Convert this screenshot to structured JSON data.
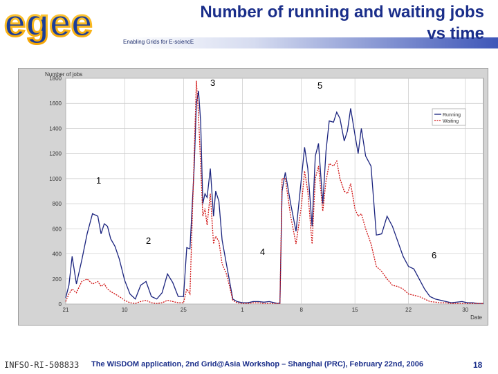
{
  "slide": {
    "logo_text": "egee",
    "tagline": "Enabling Grids for E-sciencE",
    "title_line1": "Number of running and waiting jobs",
    "title_line2": "vs time",
    "footer_id": "INFSO-RI-508833",
    "footer_text": "The WISDOM application, 2nd Grid@Asia Workshop – Shanghai (PRC), February 22nd, 2006",
    "page_number": "18"
  },
  "colors": {
    "brand_blue": "#1a2e8a",
    "running": "#1a237e",
    "waiting": "#d01010"
  },
  "chart_data": {
    "type": "line",
    "title": "",
    "ylabel": "Number of jobs",
    "xlabel": "Date",
    "ylim": [
      0,
      1800
    ],
    "yticks": [
      "0",
      "200",
      "400",
      "600",
      "800",
      "1000",
      "1200",
      "1400",
      "1600",
      "1800"
    ],
    "xlim": [
      0,
      39
    ],
    "xtick_positions": [
      0,
      5.5,
      11,
      16.5,
      22,
      27,
      32,
      37.3
    ],
    "xticks": [
      "21",
      "10",
      "25",
      "1",
      "8",
      "15",
      "22",
      "30"
    ],
    "legend": {
      "placement": "right",
      "entries": [
        "Running",
        "Waiting"
      ]
    },
    "grid": true,
    "series": [
      {
        "name": "Running",
        "x": [
          0,
          0.3,
          0.6,
          1,
          1.5,
          2,
          2.5,
          3,
          3.3,
          3.6,
          3.9,
          4.2,
          4.6,
          5,
          5.5,
          6,
          6.5,
          7,
          7.5,
          8,
          8.5,
          9,
          9.5,
          10,
          10.5,
          11,
          11.3,
          11.6,
          12,
          12.2,
          12.4,
          12.6,
          12.8,
          13,
          13.2,
          13.5,
          13.8,
          14,
          14.3,
          14.6,
          15,
          15.3,
          15.6,
          16,
          16.5,
          17,
          17.5,
          18,
          18.5,
          19,
          19.5,
          19.8,
          20,
          20.2,
          20.5,
          21,
          21.5,
          22,
          22.3,
          22.6,
          23,
          23.3,
          23.6,
          24,
          24.3,
          24.6,
          25,
          25.3,
          25.6,
          26,
          26.3,
          26.6,
          27,
          27.3,
          27.6,
          28,
          28.5,
          29,
          29.5,
          30,
          30.5,
          31,
          31.5,
          32,
          32.5,
          33,
          33.5,
          34,
          34.5,
          35,
          35.5,
          36,
          36.5,
          37,
          37.5,
          38,
          38.5,
          39
        ],
        "values": [
          50,
          150,
          380,
          160,
          350,
          560,
          720,
          700,
          560,
          640,
          620,
          520,
          460,
          360,
          190,
          80,
          40,
          150,
          180,
          60,
          40,
          90,
          240,
          170,
          60,
          60,
          450,
          440,
          1100,
          1600,
          1700,
          1450,
          800,
          880,
          850,
          1080,
          700,
          900,
          820,
          510,
          320,
          180,
          40,
          20,
          10,
          10,
          20,
          20,
          15,
          20,
          10,
          5,
          10,
          900,
          1050,
          800,
          580,
          1000,
          1250,
          1080,
          620,
          1180,
          1280,
          800,
          1220,
          1460,
          1450,
          1530,
          1480,
          1300,
          1380,
          1560,
          1350,
          1200,
          1400,
          1180,
          1100,
          550,
          560,
          700,
          620,
          500,
          380,
          300,
          280,
          200,
          120,
          60,
          40,
          30,
          20,
          10,
          15,
          20,
          10,
          10,
          5,
          5
        ],
        "color": "#1a237e",
        "dash": false
      },
      {
        "name": "Waiting",
        "x": [
          0,
          0.3,
          0.6,
          1,
          1.5,
          2,
          2.5,
          3,
          3.3,
          3.6,
          3.9,
          4.2,
          4.6,
          5,
          5.5,
          6,
          6.5,
          7,
          7.5,
          8,
          8.5,
          9,
          9.5,
          10,
          10.5,
          11,
          11.3,
          11.6,
          12,
          12.2,
          12.4,
          12.6,
          12.8,
          13,
          13.2,
          13.5,
          13.8,
          14,
          14.3,
          14.6,
          15,
          15.3,
          15.6,
          16,
          16.5,
          17,
          17.5,
          18,
          18.5,
          19,
          19.5,
          19.8,
          20,
          20.2,
          20.5,
          21,
          21.5,
          22,
          22.3,
          22.6,
          23,
          23.3,
          23.6,
          24,
          24.3,
          24.6,
          25,
          25.3,
          25.6,
          26,
          26.3,
          26.6,
          27,
          27.3,
          27.6,
          28,
          28.5,
          29,
          29.5,
          30,
          30.5,
          31,
          31.5,
          32,
          32.5,
          33,
          33.5,
          34,
          34.5,
          35,
          35.5,
          36,
          36.5,
          37,
          37.5,
          38,
          38.5,
          39
        ],
        "values": [
          20,
          80,
          120,
          90,
          180,
          200,
          160,
          180,
          140,
          160,
          120,
          100,
          80,
          60,
          30,
          10,
          5,
          20,
          30,
          10,
          5,
          10,
          30,
          20,
          10,
          10,
          120,
          80,
          1200,
          1780,
          1500,
          1100,
          700,
          760,
          630,
          880,
          480,
          540,
          500,
          320,
          240,
          140,
          30,
          10,
          5,
          5,
          10,
          10,
          5,
          5,
          5,
          5,
          5,
          1000,
          1000,
          700,
          480,
          780,
          1060,
          900,
          480,
          1000,
          1100,
          740,
          980,
          1120,
          1100,
          1140,
          1000,
          900,
          880,
          960,
          760,
          700,
          720,
          600,
          480,
          300,
          260,
          200,
          150,
          140,
          120,
          80,
          70,
          60,
          40,
          20,
          15,
          10,
          10,
          5,
          5,
          5,
          5,
          5,
          5,
          5
        ],
        "color": "#d01010",
        "dash": true
      }
    ],
    "annotations": [
      "1",
      "2",
      "3",
      "4",
      "5",
      "6"
    ]
  }
}
